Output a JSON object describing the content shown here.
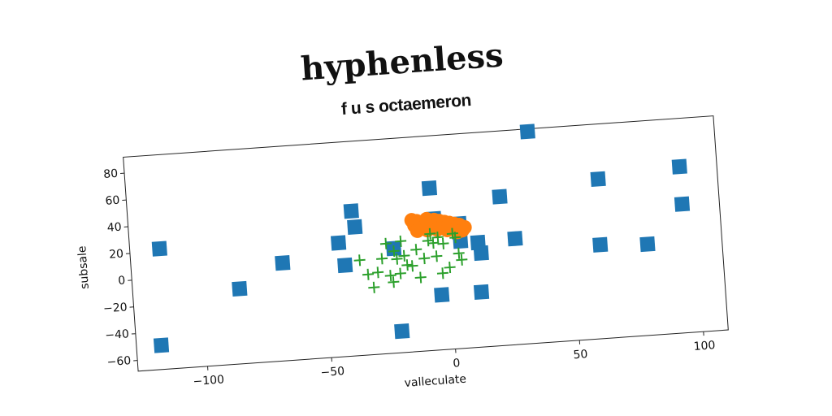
{
  "chart_data": {
    "type": "scatter",
    "title": "hyphenless",
    "subtitle": "f u s octaemeron",
    "xlabel": "valleculate",
    "ylabel": "subsale",
    "xlim": [
      -128,
      110
    ],
    "ylim": [
      -68,
      92
    ],
    "xticks": [
      {
        "value": -100,
        "label": "−100"
      },
      {
        "value": -50,
        "label": "−50"
      },
      0,
      50,
      100
    ],
    "yticks": [
      {
        "value": -60,
        "label": "−60"
      },
      {
        "value": -40,
        "label": "−40"
      },
      {
        "value": -20,
        "label": "−20"
      },
      0,
      20,
      40,
      60,
      80
    ],
    "series": [
      {
        "color": "#1f77b4",
        "marker": "s",
        "x": [
          -116,
          -118,
          -85,
          -67,
          -44,
          -42,
          -38,
          -37,
          -22,
          -21,
          -6,
          -5,
          -4,
          5,
          5,
          12,
          12,
          13,
          22,
          27,
          35,
          62,
          61,
          80,
          95,
          95
        ],
        "values": [
          22,
          -50,
          -12,
          5,
          17,
          0,
          40,
          28,
          10,
          -52,
          53,
          30,
          -27,
          25,
          12,
          -27,
          10,
          2,
          43,
          11,
          90,
          51,
          2,
          0,
          56,
          28
        ]
      },
      {
        "color": "#ff7f0e",
        "marker": "o",
        "x": [
          -14,
          -13,
          -12,
          -11,
          -10,
          -9,
          -8,
          -7,
          -6,
          -5,
          -4,
          -3,
          -2,
          -1,
          0,
          1,
          2,
          3,
          4,
          5,
          6,
          7,
          -12,
          -8,
          -4,
          0,
          4
        ],
        "values": [
          30,
          26,
          29,
          24,
          28,
          25,
          30,
          27,
          26,
          29,
          25,
          28,
          24,
          27,
          23,
          26,
          22,
          25,
          21,
          24,
          20,
          22,
          22,
          22,
          22,
          21,
          19
        ]
      },
      {
        "color": "#2ca02c",
        "marker": "+",
        "x": [
          -36,
          -33,
          -31,
          -29,
          -27,
          -25,
          -23,
          -22,
          -21,
          -20,
          -19,
          -18,
          -17,
          -15,
          -13,
          -12,
          -10,
          -8,
          -7,
          -6,
          -5,
          -4,
          -3,
          -2,
          0,
          2,
          3,
          4,
          5,
          -24
        ],
        "values": [
          3,
          -8,
          -18,
          -7,
          3,
          14,
          -15,
          8,
          2,
          -9,
          15,
          4,
          -3,
          -4,
          8,
          -13,
          1,
          14,
          19,
          12,
          2,
          16,
          -11,
          11,
          -7,
          18,
          15,
          3,
          -2,
          -10
        ]
      }
    ]
  }
}
